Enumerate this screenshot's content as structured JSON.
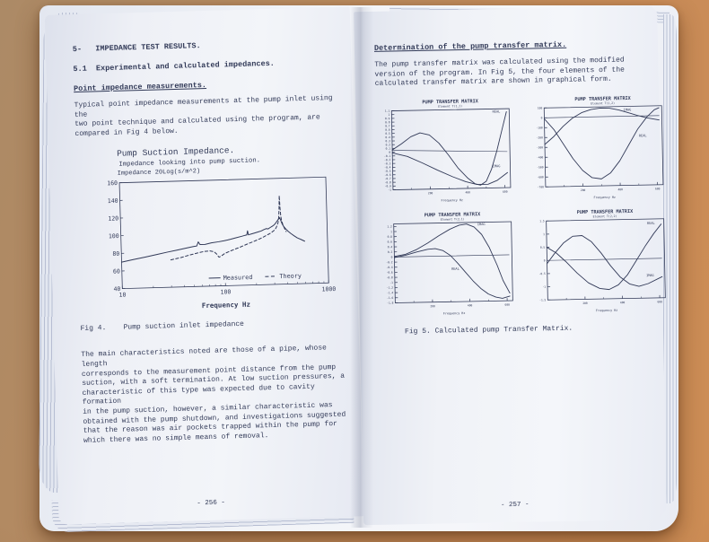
{
  "scene": {
    "background_color": "#b98a5e",
    "page_color": "#eef0f6",
    "ink_color": "#323a58",
    "page_edge_color": "#b6bdd2"
  },
  "left_page": {
    "section_heading": "5-   IMPEDANCE TEST RESULTS.",
    "subsection_heading": "5.1  Experimental and calculated impedances.",
    "point_heading": "Point impedance measurements.",
    "intro_paragraph": "Typical point impedance measurements at the pump inlet using the\ntwo point technique and calculated using the program, are\ncompared in Fig 4 below.",
    "fig4_caption": "Fig 4.    Pump suction inlet impedance",
    "body_paragraph": "The main characteristics noted are those of a pipe, whose length\ncorresponds to the measurement point distance from the pump\nsuction, with a soft termination. At low suction pressures, a\ncharacteristic of this type was expected due to cavity formation\nin the pump suction, however, a similar characteristic was\nobtained with the pump shutdown, and investigations suggested\nthat the reason was air pockets trapped within the pump for\nwhich there was no simple means of removal.",
    "page_number": "- 256 -"
  },
  "right_page": {
    "determination_heading": "Determination of the pump transfer matrix.",
    "intro_paragraph": "The pump transfer matrix was calculated using the modified\nversion of the program. In Fig 5, the four elements of the\ncalculated transfer matrix are shown in graphical form.",
    "fig5_caption": "Fig 5. Calculated pump Transfer Matrix.",
    "page_number": "- 257 -"
  },
  "chart_data": [
    {
      "id": "fig4",
      "type": "line",
      "title": "Pump Suction Impedance.",
      "subtitle": "Impedance looking into pump suction.",
      "ylabel": "Impedance 20Log(s/m^2)",
      "xlabel": "Frequency Hz",
      "x_scale": "log",
      "xlim": [
        10,
        1000
      ],
      "ylim": [
        40,
        160
      ],
      "xticks": [
        10,
        100,
        1000
      ],
      "yticks": [
        40,
        60,
        80,
        100,
        120,
        140,
        160
      ],
      "legend": [
        {
          "text": "Measured",
          "style": "solid"
        },
        {
          "text": "Theory",
          "style": "dashed"
        }
      ],
      "series": [
        {
          "name": "Measured",
          "style": "solid",
          "points": [
            [
              10,
              70
            ],
            [
              13,
              72.5
            ],
            [
              17,
              75
            ],
            [
              22,
              77.5
            ],
            [
              28,
              80
            ],
            [
              35,
              82
            ],
            [
              43,
              84
            ],
            [
              50,
              85.5
            ],
            [
              54,
              86
            ],
            [
              56,
              90.5
            ],
            [
              58,
              87.5
            ],
            [
              65,
              87.5
            ],
            [
              75,
              89
            ],
            [
              88,
              90
            ],
            [
              100,
              91
            ],
            [
              115,
              92.5
            ],
            [
              130,
              94
            ],
            [
              148,
              95.5
            ],
            [
              160,
              96.5
            ],
            [
              166,
              97
            ],
            [
              169,
              101.5
            ],
            [
              172,
              97
            ],
            [
              185,
              98
            ],
            [
              200,
              99
            ],
            [
              215,
              100
            ],
            [
              230,
              101
            ],
            [
              245,
              102.5
            ],
            [
              258,
              103.5
            ],
            [
              268,
              103
            ],
            [
              280,
              104.5
            ],
            [
              295,
              106
            ],
            [
              308,
              107.5
            ],
            [
              318,
              109.5
            ],
            [
              328,
              111.5
            ],
            [
              338,
              113.5
            ],
            [
              348,
              115.5
            ],
            [
              355,
              113
            ],
            [
              362,
              110
            ],
            [
              372,
              107
            ],
            [
              385,
              104.5
            ],
            [
              400,
              102
            ],
            [
              420,
              99.5
            ],
            [
              445,
              97
            ],
            [
              475,
              94.5
            ],
            [
              510,
              92
            ],
            [
              555,
              90
            ],
            [
              600,
              88
            ]
          ]
        },
        {
          "name": "Theory",
          "style": "dashed",
          "points": [
            [
              30,
              71
            ],
            [
              38,
              73.5
            ],
            [
              46,
              76
            ],
            [
              55,
              78
            ],
            [
              63,
              79.5
            ],
            [
              72,
              80
            ],
            [
              79,
              79
            ],
            [
              84,
              76
            ],
            [
              88,
              72.5
            ],
            [
              93,
              74
            ],
            [
              100,
              76.5
            ],
            [
              110,
              78.5
            ],
            [
              125,
              81
            ],
            [
              140,
              83
            ],
            [
              158,
              85.5
            ],
            [
              175,
              87.5
            ],
            [
              195,
              89.5
            ],
            [
              215,
              91.5
            ],
            [
              240,
              94
            ],
            [
              265,
              96.5
            ],
            [
              285,
              98.5
            ],
            [
              305,
              101
            ],
            [
              318,
              103.5
            ],
            [
              328,
              106.5
            ],
            [
              336,
              110
            ],
            [
              342,
              116
            ],
            [
              346,
              126
            ],
            [
              350,
              140.5
            ],
            [
              354,
              126
            ],
            [
              358,
              117
            ],
            [
              364,
              112
            ],
            [
              372,
              108
            ],
            [
              382,
              104.5
            ],
            [
              392,
              101.5
            ],
            [
              400,
              99.5
            ]
          ]
        }
      ]
    },
    {
      "id": "tm11",
      "type": "line",
      "title": "PUMP TRANSFER MATRIX",
      "subtitle": "Element T(1,1)",
      "xlabel": "Frequency Hz",
      "xlim": [
        0,
        630
      ],
      "ylim": [
        -1,
        1.1
      ],
      "ytick_step": 0.1,
      "xticks": [
        200,
        400,
        600
      ],
      "xminor": [
        100,
        300,
        500
      ],
      "series": [
        {
          "name": "REAL",
          "style": "solid",
          "label": {
            "text": "REAL",
            "x": 540,
            "y": 1.0
          },
          "points": [
            [
              0,
              0.06
            ],
            [
              50,
              0.22
            ],
            [
              100,
              0.4
            ],
            [
              150,
              0.5
            ],
            [
              200,
              0.44
            ],
            [
              250,
              0.22
            ],
            [
              300,
              -0.1
            ],
            [
              350,
              -0.45
            ],
            [
              400,
              -0.72
            ],
            [
              440,
              -0.88
            ],
            [
              470,
              -0.92
            ],
            [
              500,
              -0.82
            ],
            [
              530,
              -0.5
            ],
            [
              560,
              -0.02
            ],
            [
              590,
              0.55
            ],
            [
              615,
              1.02
            ]
          ]
        },
        {
          "name": "IMAG",
          "style": "solid",
          "label": {
            "text": "IMAG",
            "x": 535,
            "y": -0.45
          },
          "points": [
            [
              0,
              -0.02
            ],
            [
              80,
              -0.12
            ],
            [
              160,
              -0.3
            ],
            [
              240,
              -0.5
            ],
            [
              320,
              -0.68
            ],
            [
              390,
              -0.82
            ],
            [
              450,
              -0.9
            ],
            [
              510,
              -0.9
            ],
            [
              560,
              -0.8
            ],
            [
              615,
              -0.6
            ]
          ]
        },
        {
          "name": "zero",
          "style": "solid",
          "width": 0.6,
          "points": [
            [
              0,
              0.05
            ],
            [
              615,
              -0.04
            ]
          ]
        }
      ]
    },
    {
      "id": "tm12",
      "type": "line",
      "title": "PUMP TRANSFER MATRIX",
      "subtitle": "Element T(1,2)",
      "xlabel": "Frequency Hz",
      "xlim": [
        0,
        630
      ],
      "ylim": [
        -700,
        100
      ],
      "ytick_step": 100,
      "xticks": [
        200,
        400,
        600
      ],
      "xminor": [
        100,
        300,
        500
      ],
      "series": [
        {
          "name": "REAL",
          "style": "solid",
          "label": {
            "text": "REAL",
            "x": 505,
            "y": -210
          },
          "points": [
            [
              0,
              -10
            ],
            [
              50,
              -120
            ],
            [
              100,
              -270
            ],
            [
              150,
              -420
            ],
            [
              200,
              -540
            ],
            [
              250,
              -615
            ],
            [
              300,
              -630
            ],
            [
              350,
              -570
            ],
            [
              400,
              -450
            ],
            [
              450,
              -290
            ],
            [
              500,
              -130
            ],
            [
              550,
              -10
            ],
            [
              590,
              60
            ],
            [
              615,
              80
            ]
          ]
        },
        {
          "name": "IMAG",
          "style": "solid",
          "label": {
            "text": "IMAG",
            "x": 425,
            "y": 55
          },
          "points": [
            [
              0,
              -270
            ],
            [
              50,
              -190
            ],
            [
              100,
              -90
            ],
            [
              150,
              -10
            ],
            [
              200,
              45
            ],
            [
              250,
              75
            ],
            [
              300,
              88
            ],
            [
              350,
              85
            ],
            [
              400,
              65
            ],
            [
              450,
              35
            ],
            [
              500,
              5
            ],
            [
              550,
              -20
            ],
            [
              615,
              -45
            ]
          ]
        },
        {
          "name": "zero",
          "style": "solid",
          "width": 0.6,
          "points": [
            [
              0,
              0
            ],
            [
              615,
              0
            ]
          ]
        }
      ]
    },
    {
      "id": "tm21",
      "type": "line",
      "title": "PUMP TRANSFER MATRIX",
      "subtitle": "Element T(2,1)",
      "xlabel": "Frequency Hz",
      "xlim": [
        0,
        630
      ],
      "ylim": [
        -1.8,
        1.3
      ],
      "ytick_step": 0.2,
      "xticks": [
        200,
        400,
        600
      ],
      "xminor": [
        100,
        300,
        500
      ],
      "series": [
        {
          "name": "IMAG",
          "style": "solid",
          "label": {
            "text": "IMAG",
            "x": 448,
            "y": 1.18
          },
          "points": [
            [
              0,
              0.02
            ],
            [
              60,
              0.1
            ],
            [
              120,
              0.28
            ],
            [
              180,
              0.52
            ],
            [
              240,
              0.8
            ],
            [
              300,
              1.05
            ],
            [
              350,
              1.2
            ],
            [
              390,
              1.24
            ],
            [
              430,
              1.12
            ],
            [
              470,
              0.82
            ],
            [
              510,
              0.3
            ],
            [
              550,
              -0.4
            ],
            [
              580,
              -1.0
            ],
            [
              615,
              -1.5
            ]
          ]
        },
        {
          "name": "REAL",
          "style": "solid",
          "label": {
            "text": "REAL",
            "x": 305,
            "y": -0.55
          },
          "points": [
            [
              0,
              -0.02
            ],
            [
              60,
              0.06
            ],
            [
              120,
              0.18
            ],
            [
              180,
              0.28
            ],
            [
              220,
              0.3
            ],
            [
              260,
              0.22
            ],
            [
              300,
              0.02
            ],
            [
              340,
              -0.3
            ],
            [
              380,
              -0.65
            ],
            [
              420,
              -1.0
            ],
            [
              460,
              -1.3
            ],
            [
              500,
              -1.52
            ],
            [
              540,
              -1.65
            ],
            [
              575,
              -1.7
            ],
            [
              615,
              -1.62
            ]
          ]
        },
        {
          "name": "zero",
          "style": "solid",
          "width": 0.6,
          "points": [
            [
              0,
              0
            ],
            [
              615,
              0
            ]
          ]
        }
      ]
    },
    {
      "id": "tm22",
      "type": "line",
      "title": "PUMP TRANSFER MATRIX",
      "subtitle": "Element T(2,2)",
      "xlabel": "Frequency Hz",
      "xlim": [
        0,
        630
      ],
      "ylim": [
        -1.5,
        1.5
      ],
      "ytick_step": 0.5,
      "xticks": [
        200,
        400,
        600
      ],
      "xminor": [
        100,
        300,
        500
      ],
      "series": [
        {
          "name": "REAL",
          "style": "solid",
          "label": {
            "text": "REAL",
            "x": 540,
            "y": 1.3
          },
          "points": [
            [
              0,
              0.5
            ],
            [
              50,
              0.28
            ],
            [
              100,
              -0.05
            ],
            [
              160,
              -0.5
            ],
            [
              220,
              -0.88
            ],
            [
              280,
              -1.1
            ],
            [
              330,
              -1.15
            ],
            [
              380,
              -0.98
            ],
            [
              430,
              -0.6
            ],
            [
              480,
              -0.05
            ],
            [
              530,
              0.5
            ],
            [
              575,
              0.95
            ],
            [
              615,
              1.3
            ]
          ]
        },
        {
          "name": "IMAG",
          "style": "solid",
          "label": {
            "text": "IMAG",
            "x": 530,
            "y": -0.68
          },
          "points": [
            [
              0,
              -0.12
            ],
            [
              40,
              0.25
            ],
            [
              90,
              0.65
            ],
            [
              140,
              0.9
            ],
            [
              190,
              0.92
            ],
            [
              240,
              0.68
            ],
            [
              290,
              0.25
            ],
            [
              340,
              -0.25
            ],
            [
              390,
              -0.68
            ],
            [
              440,
              -0.95
            ],
            [
              490,
              -1.05
            ],
            [
              540,
              -0.95
            ],
            [
              615,
              -0.7
            ]
          ]
        },
        {
          "name": "zero",
          "style": "solid",
          "width": 0.6,
          "points": [
            [
              0,
              0
            ],
            [
              615,
              0
            ]
          ]
        }
      ]
    }
  ]
}
